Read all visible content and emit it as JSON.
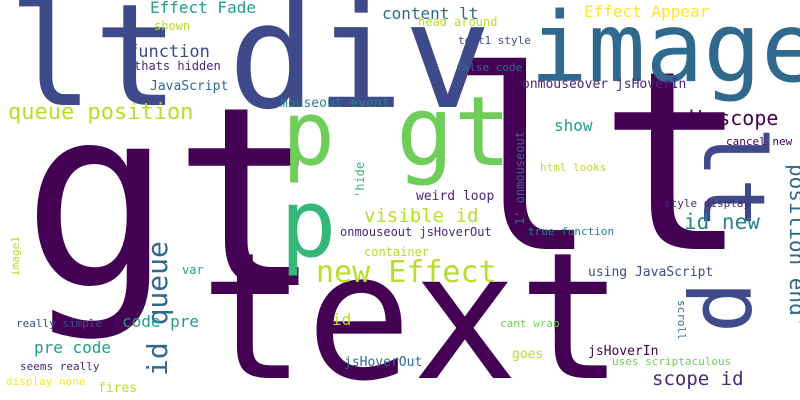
{
  "palette": {
    "deep_purple": "#440154",
    "indigo": "#482878",
    "slate_blue": "#3e4a89",
    "steel_blue": "#31688e",
    "teal": "#26828e",
    "green_teal": "#1f9e89",
    "sea_green": "#35b779",
    "light_green": "#6ece58",
    "lime": "#b5de2b",
    "yellow": "#fde725"
  },
  "words": [
    {
      "text": "gt"
    },
    {
      "text": "lt"
    },
    {
      "text": "text"
    },
    {
      "text": "div"
    },
    {
      "text": "image"
    },
    {
      "text": "lt"
    },
    {
      "text": "p"
    },
    {
      "text": "gt"
    },
    {
      "text": "p"
    },
    {
      "text": "lt p"
    },
    {
      "text": "new Effect"
    },
    {
      "text": "id queue"
    },
    {
      "text": "position end'"
    },
    {
      "text": "queue position"
    },
    {
      "text": "end' scope"
    },
    {
      "text": "scope id"
    },
    {
      "text": "visible id"
    },
    {
      "text": "id new"
    },
    {
      "text": "function"
    },
    {
      "text": "content lt"
    },
    {
      "text": "Effect Fade"
    },
    {
      "text": "Effect Appear"
    },
    {
      "text": "pre code"
    },
    {
      "text": "code pre"
    },
    {
      "text": "show"
    },
    {
      "text": "onmouseover jsHoverIn"
    },
    {
      "text": "onmouseout jsHoverOut"
    },
    {
      "text": "mouseout event"
    },
    {
      "text": "JavaScript"
    },
    {
      "text": "using JavaScript"
    },
    {
      "text": "jsHoverOut"
    },
    {
      "text": "jsHoverIn"
    },
    {
      "text": "weird loop"
    },
    {
      "text": "head around"
    },
    {
      "text": "text1 style"
    },
    {
      "text": "false code"
    },
    {
      "text": "thats hidden"
    },
    {
      "text": "shown"
    },
    {
      "text": "html looks"
    },
    {
      "text": "cancel new"
    },
    {
      "text": "style display"
    },
    {
      "text": "true function"
    },
    {
      "text": "container"
    },
    {
      "text": "var"
    },
    {
      "text": "id"
    },
    {
      "text": "goes"
    },
    {
      "text": "cant wrap"
    },
    {
      "text": "really simple"
    },
    {
      "text": "seems really"
    },
    {
      "text": "display none"
    },
    {
      "text": "fires"
    },
    {
      "text": "uses scriptaculous"
    },
    {
      "text": "1' onmouseout"
    },
    {
      "text": "'hide"
    },
    {
      "text": "image1"
    },
    {
      "text": "scroll"
    }
  ]
}
